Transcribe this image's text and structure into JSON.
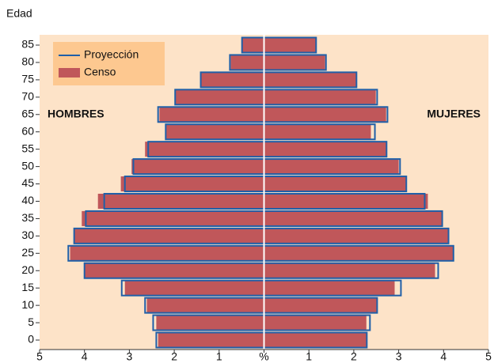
{
  "chart_data": {
    "type": "pyramid",
    "y_label": "Edad",
    "left_label": "HOMBRES",
    "right_label": "MUJERES",
    "categories": [
      "0",
      "5",
      "10",
      "15",
      "20",
      "25",
      "30",
      "35",
      "40",
      "45",
      "50",
      "55",
      "60",
      "65",
      "70",
      "75",
      "80",
      "85"
    ],
    "xlim": [
      -5,
      5
    ],
    "xticks": [
      {
        "value": -5,
        "label": "5"
      },
      {
        "value": -4,
        "label": "4"
      },
      {
        "value": -3,
        "label": "3"
      },
      {
        "value": -2,
        "label": "2"
      },
      {
        "value": -1,
        "label": "1"
      },
      {
        "value": 0,
        "label": "%"
      },
      1,
      2,
      3,
      4,
      5
    ],
    "series": [
      {
        "name": "Proyección",
        "color": "#1f5fa8",
        "style": "outline",
        "hombres": [
          2.4,
          2.47,
          2.65,
          3.17,
          4.0,
          4.36,
          4.23,
          3.97,
          3.56,
          3.1,
          2.91,
          2.58,
          2.19,
          2.36,
          1.98,
          1.41,
          0.76,
          0.49
        ],
        "mujeres": [
          2.29,
          2.36,
          2.52,
          3.05,
          3.88,
          4.22,
          4.11,
          3.97,
          3.58,
          3.17,
          3.03,
          2.73,
          2.47,
          2.75,
          2.52,
          2.06,
          1.38,
          1.16
        ]
      },
      {
        "name": "Censo",
        "color": "#c0575a",
        "style": "fill",
        "hombres": [
          2.36,
          2.4,
          2.61,
          3.1,
          4.0,
          4.32,
          4.23,
          4.06,
          3.7,
          3.19,
          2.95,
          2.65,
          2.19,
          2.33,
          1.98,
          1.41,
          0.74,
          0.48
        ],
        "mujeres": [
          2.28,
          2.28,
          2.52,
          2.91,
          3.81,
          4.22,
          4.11,
          3.97,
          3.65,
          3.17,
          3.0,
          2.72,
          2.38,
          2.72,
          2.49,
          2.06,
          1.36,
          1.15
        ]
      }
    ]
  }
}
